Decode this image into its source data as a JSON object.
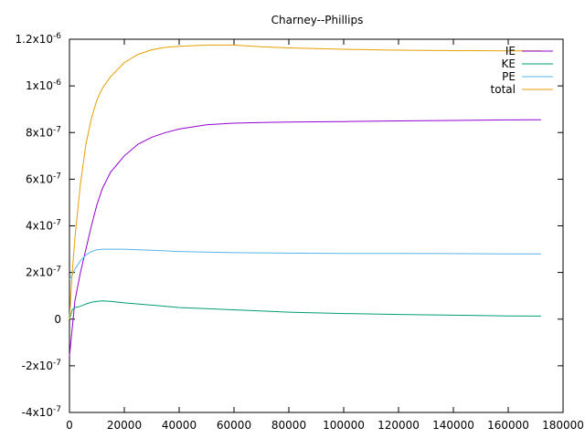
{
  "chart_data": {
    "type": "line",
    "title": "Charney--Phillips",
    "xlabel": "",
    "ylabel": "",
    "xlim": [
      0,
      180000
    ],
    "ylim": [
      -4e-07,
      1.2e-06
    ],
    "x_ticks": [
      {
        "value": 0,
        "label": "0"
      },
      {
        "value": 20000,
        "label": "20000"
      },
      {
        "value": 40000,
        "label": "40000"
      },
      {
        "value": 60000,
        "label": "60000"
      },
      {
        "value": 80000,
        "label": "80000"
      },
      {
        "value": 100000,
        "label": "100000"
      },
      {
        "value": 120000,
        "label": "120000"
      },
      {
        "value": 140000,
        "label": "140000"
      },
      {
        "value": 160000,
        "label": "160000"
      },
      {
        "value": 180000,
        "label": "180000"
      }
    ],
    "y_ticks": [
      {
        "value": -4e-07,
        "label": "-4x10",
        "exp": "-7"
      },
      {
        "value": -2e-07,
        "label": "-2x10",
        "exp": "-7"
      },
      {
        "value": 0,
        "label": "0",
        "exp": ""
      },
      {
        "value": 2e-07,
        "label": "2x10",
        "exp": "-7"
      },
      {
        "value": 4e-07,
        "label": "4x10",
        "exp": "-7"
      },
      {
        "value": 6e-07,
        "label": "6x10",
        "exp": "-7"
      },
      {
        "value": 8e-07,
        "label": "8x10",
        "exp": "-7"
      },
      {
        "value": 1e-06,
        "label": "1x10",
        "exp": "-6"
      },
      {
        "value": 1.2e-06,
        "label": "1.2x10",
        "exp": "-6"
      }
    ],
    "grid": false,
    "legend_position": "top-right",
    "series": [
      {
        "name": "IE",
        "color": "#9400d3",
        "x": [
          0,
          2000,
          4000,
          6000,
          8000,
          10000,
          12000,
          15000,
          20000,
          25000,
          30000,
          35000,
          40000,
          50000,
          60000,
          70000,
          80000,
          100000,
          120000,
          140000,
          160000,
          172000
        ],
        "y": [
          -1.6e-07,
          8e-08,
          2e-07,
          3e-07,
          4e-07,
          4.9e-07,
          5.6e-07,
          6.3e-07,
          7e-07,
          7.5e-07,
          7.8e-07,
          8e-07,
          8.15e-07,
          8.33e-07,
          8.4e-07,
          8.43e-07,
          8.45e-07,
          8.47e-07,
          8.5e-07,
          8.52e-07,
          8.54e-07,
          8.55e-07
        ]
      },
      {
        "name": "KE",
        "color": "#009e73",
        "x": [
          0,
          1000,
          2000,
          4000,
          6000,
          8000,
          10000,
          12000,
          15000,
          20000,
          30000,
          40000,
          60000,
          80000,
          100000,
          120000,
          140000,
          160000,
          172000
        ],
        "y": [
          0,
          4e-08,
          5e-08,
          5.5e-08,
          6.5e-08,
          7.2e-08,
          7.6e-08,
          7.8e-08,
          7.6e-08,
          7e-08,
          6e-08,
          5e-08,
          4e-08,
          3e-08,
          2.4e-08,
          2e-08,
          1.7e-08,
          1.4e-08,
          1.3e-08
        ]
      },
      {
        "name": "PE",
        "color": "#56b4e9",
        "x": [
          0,
          1000,
          2000,
          4000,
          6000,
          8000,
          10000,
          12000,
          15000,
          20000,
          30000,
          40000,
          60000,
          80000,
          100000,
          120000,
          140000,
          160000,
          172000
        ],
        "y": [
          1.7e-07,
          1.9e-07,
          2.15e-07,
          2.5e-07,
          2.75e-07,
          2.9e-07,
          2.97e-07,
          3e-07,
          3e-07,
          3e-07,
          2.95e-07,
          2.9e-07,
          2.85e-07,
          2.83e-07,
          2.82e-07,
          2.82e-07,
          2.81e-07,
          2.8e-07,
          2.8e-07
        ]
      },
      {
        "name": "total",
        "color": "#e69f00",
        "x": [
          0,
          1000,
          2000,
          4000,
          6000,
          8000,
          10000,
          12000,
          15000,
          20000,
          25000,
          30000,
          35000,
          40000,
          50000,
          60000,
          70000,
          80000,
          100000,
          120000,
          140000,
          160000,
          172000
        ],
        "y": [
          0,
          2e-07,
          3.5e-07,
          5.8e-07,
          7.5e-07,
          8.6e-07,
          9.4e-07,
          9.9e-07,
          1.04e-06,
          1.1e-06,
          1.135e-06,
          1.155e-06,
          1.165e-06,
          1.17e-06,
          1.175e-06,
          1.175e-06,
          1.168e-06,
          1.163e-06,
          1.157e-06,
          1.153e-06,
          1.151e-06,
          1.15e-06,
          1.15e-06
        ]
      }
    ]
  }
}
